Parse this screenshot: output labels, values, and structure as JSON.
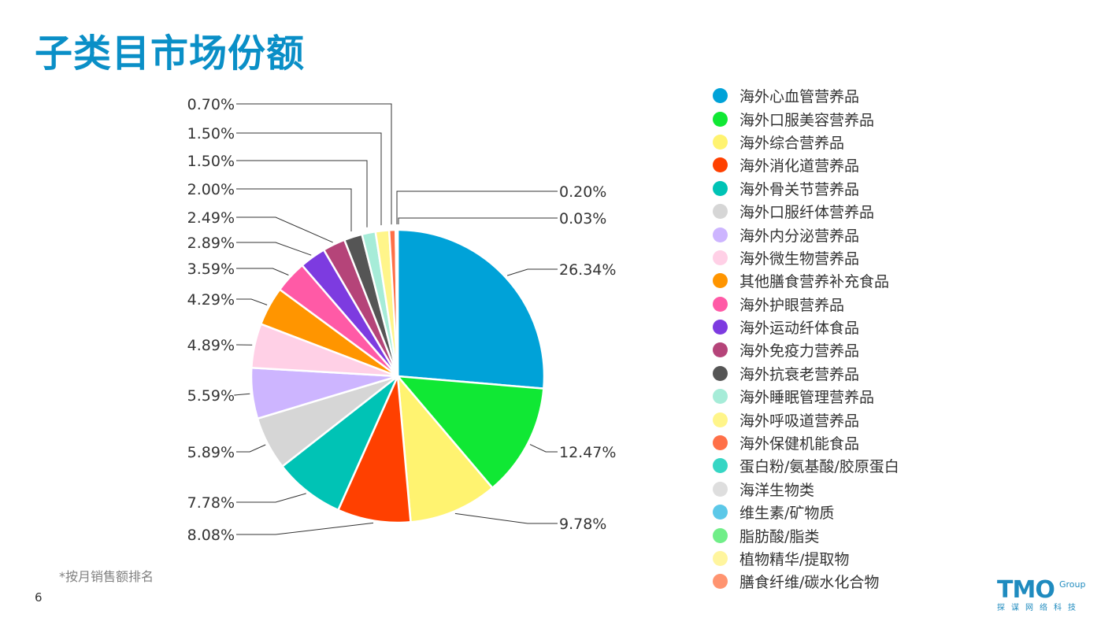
{
  "page": {
    "title": "子类目市场份额",
    "footnote": "*按月销售额排名",
    "page_number": "6"
  },
  "logo": {
    "main": "TMO",
    "group": "Group",
    "tagline": "探谋网络科技"
  },
  "chart_data": {
    "type": "pie",
    "title": "",
    "legend_position": "right",
    "start_angle_deg": 0,
    "direction": "clockwise",
    "slices": [
      {
        "label": "海外心血管营养品",
        "value": 26.34,
        "value_label": "26.34%",
        "color": "#00a2d8"
      },
      {
        "label": "海外口服美容营养品",
        "value": 12.47,
        "value_label": "12.47%",
        "color": "#10e834"
      },
      {
        "label": "海外综合营养品",
        "value": 9.78,
        "value_label": "9.78%",
        "color": "#fff370"
      },
      {
        "label": "海外消化道营养品",
        "value": 8.08,
        "value_label": "8.08%",
        "color": "#ff4000"
      },
      {
        "label": "海外骨关节营养品",
        "value": 7.78,
        "value_label": "7.78%",
        "color": "#00c3b5"
      },
      {
        "label": "海外口服纤体营养品",
        "value": 5.89,
        "value_label": "5.89%",
        "color": "#d6d6d6"
      },
      {
        "label": "海外内分泌营养品",
        "value": 5.59,
        "value_label": "5.59%",
        "color": "#cdb5ff"
      },
      {
        "label": "海外微生物营养品",
        "value": 4.89,
        "value_label": "4.89%",
        "color": "#ffd0e6"
      },
      {
        "label": "其他膳食营养补充食品",
        "value": 4.29,
        "value_label": "4.29%",
        "color": "#ff9500"
      },
      {
        "label": "海外护眼营养品",
        "value": 3.59,
        "value_label": "3.59%",
        "color": "#ff5aa6"
      },
      {
        "label": "海外运动纤体食品",
        "value": 2.89,
        "value_label": "2.89%",
        "color": "#7d3be0"
      },
      {
        "label": "海外免疫力营养品",
        "value": 2.49,
        "value_label": "2.49%",
        "color": "#b54479"
      },
      {
        "label": "海外抗衰老营养品",
        "value": 2.0,
        "value_label": "2.00%",
        "color": "#555555"
      },
      {
        "label": "海外睡眠管理营养品",
        "value": 1.5,
        "value_label": "1.50%",
        "color": "#a6ecd8"
      },
      {
        "label": "海外呼吸道营养品",
        "value": 1.5,
        "value_label": "1.50%",
        "color": "#fff58a"
      },
      {
        "label": "海外保健机能食品",
        "value": 0.7,
        "value_label": "0.70%",
        "color": "#ff7048"
      },
      {
        "label": "蛋白粉/氨基酸/胶原蛋白",
        "value": 0.2,
        "value_label": "0.20%",
        "color": "#36d6c4"
      },
      {
        "label": "海洋生物类",
        "value": 0.03,
        "value_label": "0.03%",
        "color": "#dedede"
      },
      {
        "label": "维生素/矿物质",
        "value": 0,
        "value_label": "",
        "color": "#5cc8e8"
      },
      {
        "label": "脂肪酸/脂类",
        "value": 0,
        "value_label": "",
        "color": "#70ee88"
      },
      {
        "label": "植物精华/提取物",
        "value": 0,
        "value_label": "",
        "color": "#fff59e"
      },
      {
        "label": "膳食纤维/碳水化合物",
        "value": 0,
        "value_label": "",
        "color": "#ff9470"
      }
    ]
  }
}
